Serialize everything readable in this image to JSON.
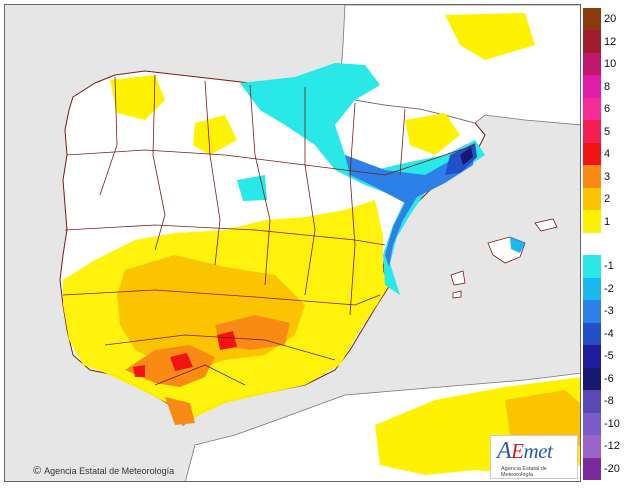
{
  "map": {
    "copyright": "Agencia Estatal de Meteorología",
    "copyright_symbol": "©",
    "logo": {
      "text_a": "A",
      "text_e": "E",
      "text_rest": "met",
      "subtitle": "Agencia Estatal de Meteorología"
    }
  },
  "legend": {
    "entries": [
      {
        "label": "20",
        "color": "#8b3a0f"
      },
      {
        "label": "12",
        "color": "#a01c2c"
      },
      {
        "label": "10",
        "color": "#c0186e"
      },
      {
        "label": "8",
        "color": "#e21ca6"
      },
      {
        "label": "6",
        "color": "#f62c94"
      },
      {
        "label": "5",
        "color": "#f1204e"
      },
      {
        "label": "4",
        "color": "#f21414"
      },
      {
        "label": "3",
        "color": "#f98a14"
      },
      {
        "label": "2",
        "color": "#fbc400"
      },
      {
        "label": "1",
        "color": "#fff200"
      },
      {
        "label": "",
        "color": "#ffffff"
      },
      {
        "label": "-1",
        "color": "#28e8e8"
      },
      {
        "label": "-2",
        "color": "#19b8ee"
      },
      {
        "label": "-3",
        "color": "#2d80e8"
      },
      {
        "label": "-4",
        "color": "#2250c8"
      },
      {
        "label": "-5",
        "color": "#1c1c9c"
      },
      {
        "label": "-6",
        "color": "#181870"
      },
      {
        "label": "-8",
        "color": "#5a48b4"
      },
      {
        "label": "-10",
        "color": "#7a5cc8"
      },
      {
        "label": "-12",
        "color": "#9a64c8"
      },
      {
        "label": "-20",
        "color": "#7a2a9a"
      }
    ]
  }
}
